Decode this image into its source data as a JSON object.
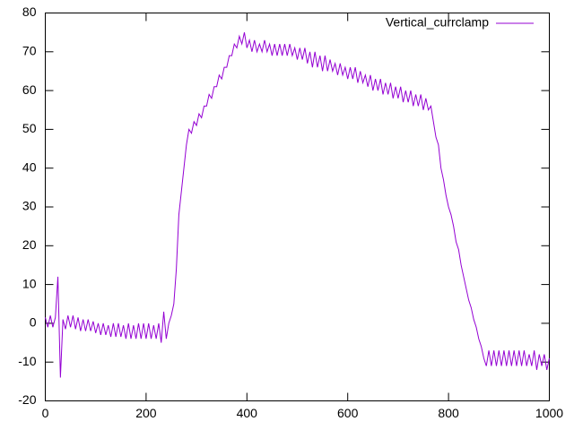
{
  "chart_data": {
    "type": "line",
    "x": [
      0,
      5,
      10,
      15,
      20,
      25,
      30,
      35,
      40,
      45,
      50,
      55,
      60,
      65,
      70,
      75,
      80,
      85,
      90,
      95,
      100,
      105,
      110,
      115,
      120,
      125,
      130,
      135,
      140,
      145,
      150,
      155,
      160,
      165,
      170,
      175,
      180,
      185,
      190,
      195,
      200,
      205,
      210,
      215,
      220,
      225,
      230,
      235,
      240,
      245,
      250,
      255,
      260,
      265,
      270,
      275,
      280,
      285,
      290,
      295,
      300,
      305,
      310,
      315,
      320,
      325,
      330,
      335,
      340,
      345,
      350,
      355,
      360,
      365,
      370,
      375,
      380,
      385,
      390,
      395,
      400,
      405,
      410,
      415,
      420,
      425,
      430,
      435,
      440,
      445,
      450,
      455,
      460,
      465,
      470,
      475,
      480,
      485,
      490,
      495,
      500,
      505,
      510,
      515,
      520,
      525,
      530,
      535,
      540,
      545,
      550,
      555,
      560,
      565,
      570,
      575,
      580,
      585,
      590,
      595,
      600,
      605,
      610,
      615,
      620,
      625,
      630,
      635,
      640,
      645,
      650,
      655,
      660,
      665,
      670,
      675,
      680,
      685,
      690,
      695,
      700,
      705,
      710,
      715,
      720,
      725,
      730,
      735,
      740,
      745,
      750,
      755,
      760,
      765,
      770,
      775,
      780,
      785,
      790,
      795,
      800,
      805,
      810,
      815,
      820,
      825,
      830,
      835,
      840,
      845,
      850,
      855,
      860,
      865,
      870,
      875,
      880,
      885,
      890,
      895,
      900,
      905,
      910,
      915,
      920,
      925,
      930,
      935,
      940,
      945,
      950,
      955,
      960,
      965,
      970,
      975,
      980,
      985,
      990,
      995,
      1000
    ],
    "series": [
      {
        "name": "Vertical_currclamp",
        "color": "#9400d3",
        "values": [
          1.5,
          -1,
          2,
          -1,
          1.5,
          12,
          -14,
          1,
          -1.5,
          2,
          -1,
          2,
          -1.5,
          1.5,
          -2,
          1,
          -2,
          1,
          -2,
          0.5,
          -2.5,
          0,
          -3,
          0,
          -3,
          -0.5,
          -3.5,
          0,
          -3.5,
          0,
          -3.5,
          -0.5,
          -4,
          0,
          -4,
          -0.5,
          -4,
          0,
          -4,
          0,
          -4,
          0,
          -4,
          -0.5,
          -4,
          0,
          -5,
          3,
          -4,
          0,
          2,
          5,
          14,
          28,
          34,
          40,
          46,
          50,
          49,
          52,
          51,
          54,
          53,
          56,
          56,
          59,
          58,
          61,
          61,
          64,
          63,
          66,
          66,
          69,
          69,
          72,
          71,
          74,
          72,
          75,
          71,
          73,
          70,
          73,
          70,
          72,
          70,
          73,
          70,
          72,
          69,
          72,
          69,
          72,
          69,
          72,
          69,
          72,
          69,
          71,
          68,
          71,
          68,
          71,
          67,
          70,
          66,
          70,
          66,
          69,
          65,
          69,
          65,
          68,
          65,
          67,
          64,
          67,
          64,
          66,
          63,
          66,
          63,
          66,
          62,
          65,
          62,
          64,
          61,
          64,
          60,
          63,
          60,
          63,
          59,
          62,
          59,
          62,
          58,
          61,
          58,
          61,
          57,
          60,
          57,
          60,
          56,
          59,
          56,
          59,
          55,
          58,
          55,
          56,
          52,
          48,
          46,
          40,
          37,
          33,
          30,
          28,
          25,
          21,
          19,
          15,
          12,
          9,
          6,
          4,
          1,
          -1,
          -4,
          -6,
          -9,
          -11,
          -7,
          -11,
          -7,
          -11,
          -7,
          -11,
          -7,
          -11,
          -7,
          -11,
          -7,
          -11,
          -7,
          -11,
          -7,
          -11,
          -8,
          -11,
          -7,
          -12,
          -8,
          -11,
          -8,
          -12,
          -9
        ]
      }
    ],
    "xlim": [
      0,
      1000
    ],
    "xticks": [
      0,
      200,
      400,
      600,
      800,
      1000
    ],
    "ylim": [
      -20,
      80
    ],
    "yticks": [
      -20,
      -10,
      0,
      10,
      20,
      30,
      40,
      50,
      60,
      70,
      80
    ],
    "grid": false,
    "legend": "top-right"
  }
}
